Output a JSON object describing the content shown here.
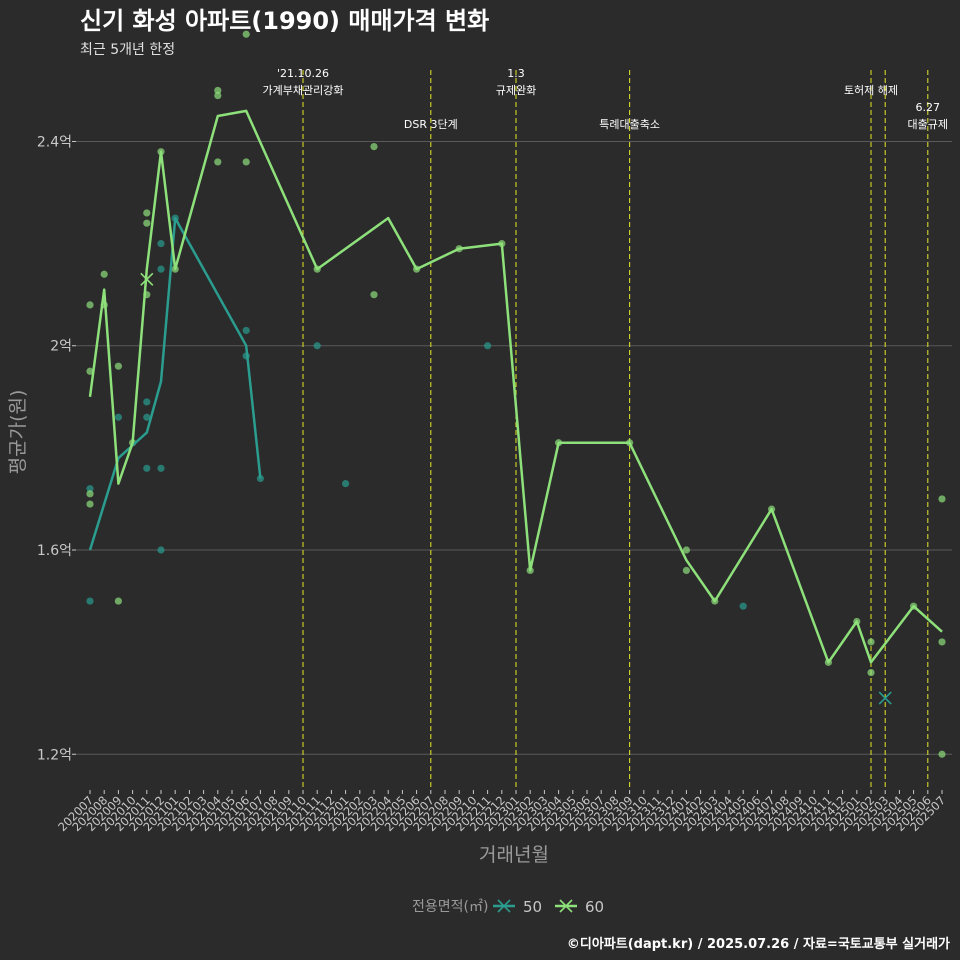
{
  "title": "신기 화성 아파트(1990) 매매가격 변화",
  "subtitle": "최근 5개년 한정",
  "credit": "©디아파트(dapt.kr) / 2025.07.26 / 자료=국토교통부 실거래가",
  "colors": {
    "background": "#2b2b2c",
    "grid": "#5a5a5a",
    "event_line": "#d4d82a",
    "series_50": "#2a9d8f",
    "series_60": "#8ee07a",
    "text": "#ffffff",
    "axis_text": "#c8c8c8"
  },
  "chart_data": {
    "type": "line",
    "title": "신기 화성 아파트(1990) 매매가격 변화",
    "subtitle": "최근 5개년 한정",
    "xlabel": "거래년월",
    "ylabel": "평균가(원)",
    "ylim": [
      1.13,
      2.54
    ],
    "y_ticks": [
      {
        "value": 1.2,
        "label": "1.2억"
      },
      {
        "value": 1.6,
        "label": "1.6억"
      },
      {
        "value": 2.0,
        "label": "2억"
      },
      {
        "value": 2.4,
        "label": "2.4억"
      }
    ],
    "categories": [
      "202007",
      "202008",
      "202009",
      "202010",
      "202011",
      "202012",
      "202101",
      "202102",
      "202103",
      "202104",
      "202105",
      "202106",
      "202107",
      "202108",
      "202109",
      "202110",
      "202111",
      "202112",
      "202201",
      "202202",
      "202203",
      "202204",
      "202205",
      "202206",
      "202207",
      "202208",
      "202209",
      "202210",
      "202211",
      "202212",
      "202301",
      "202302",
      "202303",
      "202304",
      "202305",
      "202306",
      "202307",
      "202308",
      "202309",
      "202310",
      "202311",
      "202312",
      "202401",
      "202402",
      "202403",
      "202404",
      "202405",
      "202406",
      "202407",
      "202408",
      "202409",
      "202410",
      "202411",
      "202412",
      "202501",
      "202502",
      "202503",
      "202504",
      "202505",
      "202506",
      "202507"
    ],
    "legend": {
      "title": "전용면적(㎡)",
      "position": "bottom"
    },
    "grid": true,
    "events": [
      {
        "x": "202110",
        "lines": [
          "'21.10.26",
          "가계부채관리강화"
        ],
        "level": 1
      },
      {
        "x": "202207",
        "lines": [
          "DSR 3단계"
        ],
        "level": 2
      },
      {
        "x": "202301",
        "lines": [
          "1.3",
          "규제완화"
        ],
        "level": 1
      },
      {
        "x": "202309",
        "lines": [
          "특례대출축소"
        ],
        "level": 2
      },
      {
        "x": "202502",
        "lines": [
          "토허제 해제"
        ],
        "level": 1
      },
      {
        "x": "202503",
        "lines": [],
        "level": 1
      },
      {
        "x": "202506",
        "lines": [
          "6.27",
          "대출규제"
        ],
        "level": 2
      }
    ],
    "series": [
      {
        "name": "50",
        "line": [
          [
            "202007",
            1.6
          ],
          [
            "202009",
            1.78
          ],
          [
            "202011",
            1.83
          ],
          [
            "202012",
            1.93
          ],
          [
            "202101",
            2.25
          ],
          [
            "202106",
            2.0
          ],
          [
            "202107",
            1.74
          ]
        ],
        "points": [
          [
            "202007",
            1.5
          ],
          [
            "202007",
            1.72
          ],
          [
            "202009",
            1.86
          ],
          [
            "202011",
            1.76
          ],
          [
            "202011",
            1.86
          ],
          [
            "202011",
            1.89
          ],
          [
            "202012",
            1.6
          ],
          [
            "202012",
            1.76
          ],
          [
            "202012",
            2.15
          ],
          [
            "202012",
            2.2
          ],
          [
            "202101",
            2.25
          ],
          [
            "202106",
            1.98
          ],
          [
            "202106",
            2.03
          ],
          [
            "202107",
            1.74
          ],
          [
            "202111",
            2.0
          ],
          [
            "202201",
            1.73
          ],
          [
            "202211",
            2.0
          ],
          [
            "202405",
            1.49
          ]
        ],
        "markers": [
          [
            "202503",
            1.31
          ]
        ]
      },
      {
        "name": "60",
        "line": [
          [
            "202007",
            1.9
          ],
          [
            "202008",
            2.11
          ],
          [
            "202009",
            1.73
          ],
          [
            "202010",
            1.81
          ],
          [
            "202011",
            2.15
          ],
          [
            "202012",
            2.38
          ],
          [
            "202101",
            2.15
          ],
          [
            "202104",
            2.45
          ],
          [
            "202106",
            2.46
          ],
          [
            "202111",
            2.15
          ],
          [
            "202204",
            2.25
          ],
          [
            "202206",
            2.15
          ],
          [
            "202209",
            2.19
          ],
          [
            "202212",
            2.2
          ],
          [
            "202302",
            1.56
          ],
          [
            "202304",
            1.81
          ],
          [
            "202309",
            1.81
          ],
          [
            "202401",
            1.58
          ],
          [
            "202403",
            1.5
          ],
          [
            "202407",
            1.68
          ],
          [
            "202411",
            1.38
          ],
          [
            "202501",
            1.46
          ],
          [
            "202502",
            1.38
          ],
          [
            "202505",
            1.49
          ],
          [
            "202507",
            1.44
          ]
        ],
        "points": [
          [
            "202007",
            1.69
          ],
          [
            "202007",
            1.71
          ],
          [
            "202007",
            1.95
          ],
          [
            "202007",
            2.08
          ],
          [
            "202008",
            2.08
          ],
          [
            "202008",
            2.14
          ],
          [
            "202009",
            1.5
          ],
          [
            "202009",
            1.96
          ],
          [
            "202010",
            1.81
          ],
          [
            "202011",
            2.1
          ],
          [
            "202011",
            2.24
          ],
          [
            "202011",
            2.26
          ],
          [
            "202012",
            2.38
          ],
          [
            "202101",
            2.15
          ],
          [
            "202104",
            2.36
          ],
          [
            "202104",
            2.49
          ],
          [
            "202104",
            2.5
          ],
          [
            "202106",
            2.36
          ],
          [
            "202106",
            2.61
          ],
          [
            "202111",
            2.15
          ],
          [
            "202203",
            2.1
          ],
          [
            "202203",
            2.39
          ],
          [
            "202206",
            2.15
          ],
          [
            "202209",
            2.19
          ],
          [
            "202212",
            2.2
          ],
          [
            "202302",
            1.56
          ],
          [
            "202304",
            1.81
          ],
          [
            "202309",
            1.81
          ],
          [
            "202401",
            1.56
          ],
          [
            "202401",
            1.6
          ],
          [
            "202403",
            1.5
          ],
          [
            "202407",
            1.68
          ],
          [
            "202411",
            1.38
          ],
          [
            "202501",
            1.46
          ],
          [
            "202502",
            1.36
          ],
          [
            "202502",
            1.42
          ],
          [
            "202505",
            1.49
          ],
          [
            "202507",
            1.2
          ],
          [
            "202507",
            1.42
          ],
          [
            "202507",
            1.7
          ]
        ],
        "markers": [
          [
            "202011",
            2.13
          ]
        ]
      }
    ]
  }
}
